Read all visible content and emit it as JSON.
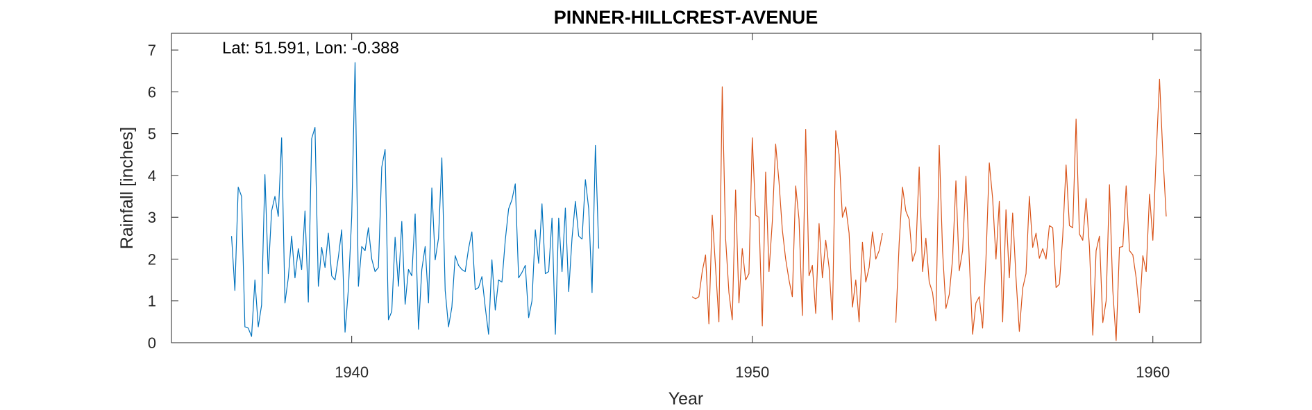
{
  "chart_data": {
    "type": "line",
    "title": "PINNER-HILLCREST-AVENUE",
    "xlabel": "Year",
    "ylabel": "Rainfall [inches]",
    "annotation": "Lat: 51.591, Lon: -0.388",
    "xlim": [
      1935.5,
      1961.2
    ],
    "ylim": [
      0,
      7.4
    ],
    "x_ticks": [
      1940,
      1950,
      1960
    ],
    "y_ticks": [
      0,
      1,
      2,
      3,
      4,
      5,
      6,
      7
    ],
    "grid": false,
    "box": true,
    "series": [
      {
        "color": "#0072BD",
        "x_start": 1937.0,
        "x_step": 0.0833333,
        "values": [
          2.55,
          1.25,
          3.72,
          3.5,
          0.38,
          0.35,
          0.15,
          1.5,
          0.38,
          0.9,
          4.02,
          1.65,
          3.15,
          3.5,
          3.02,
          4.9,
          0.95,
          1.55,
          2.55,
          1.55,
          2.25,
          1.75,
          3.15,
          0.97,
          4.88,
          5.15,
          1.35,
          2.28,
          1.8,
          2.62,
          1.6,
          1.5,
          2.05,
          2.7,
          0.25,
          1.28,
          3.02,
          6.7,
          1.35,
          2.3,
          2.2,
          2.75,
          2.0,
          1.7,
          1.8,
          4.2,
          4.62,
          0.55,
          0.75,
          2.52,
          1.35,
          2.9,
          0.92,
          1.75,
          1.6,
          3.08,
          0.32,
          1.75,
          2.3,
          0.95,
          3.7,
          1.98,
          2.5,
          4.42,
          1.25,
          0.38,
          0.85,
          2.08,
          1.85,
          1.75,
          1.7,
          2.25,
          2.65,
          1.27,
          1.32,
          1.58,
          0.85,
          0.2,
          1.98,
          0.78,
          1.5,
          1.45,
          2.45,
          3.2,
          3.42,
          3.8,
          1.55,
          1.68,
          1.85,
          0.6,
          1.0,
          2.7,
          1.9,
          3.32,
          1.65,
          1.7,
          2.98,
          0.2,
          2.98,
          1.7,
          3.22,
          1.22,
          2.5,
          3.38,
          2.55,
          2.48,
          3.9,
          3.2,
          1.2,
          4.72,
          2.25
        ]
      },
      {
        "color": "#D95319",
        "x_start": 1948.5,
        "x_step": 0.0833333,
        "values": [
          1.1,
          1.05,
          1.1,
          1.7,
          2.1,
          0.45,
          3.05,
          1.8,
          0.5,
          6.12,
          2.5,
          1.2,
          0.55,
          3.65,
          0.95,
          2.25,
          1.5,
          1.65,
          4.9,
          3.05,
          3.0,
          0.4,
          4.08,
          1.7,
          2.9,
          4.75,
          3.85,
          2.7,
          2.0,
          1.5,
          1.1,
          3.75,
          2.95,
          0.65,
          5.1,
          1.6,
          1.85,
          0.7,
          2.85,
          1.55,
          2.45,
          1.8,
          0.55,
          5.07,
          4.5,
          3.0,
          3.25,
          2.62,
          0.85,
          1.5,
          0.5,
          2.4,
          1.45,
          1.8,
          2.65,
          2.0,
          2.2,
          2.62,
          null,
          null,
          null,
          0.48,
          2.38,
          3.72,
          3.15,
          2.95,
          1.95,
          2.2,
          4.2,
          1.7,
          2.5,
          1.45,
          1.2,
          0.52,
          4.72,
          2.2,
          0.82,
          1.15,
          2.0,
          3.87,
          1.72,
          2.2,
          3.98,
          2.0,
          0.2,
          0.95,
          1.1,
          0.35,
          2.0,
          4.3,
          3.45,
          2.0,
          3.38,
          0.5,
          3.18,
          1.55,
          3.1,
          1.55,
          0.27,
          1.3,
          1.65,
          3.5,
          2.28,
          2.62,
          2.02,
          2.25,
          2.0,
          2.8,
          2.75,
          1.32,
          1.4,
          2.55,
          4.25,
          2.8,
          2.75,
          5.35,
          2.6,
          2.45,
          3.45,
          2.3,
          0.18,
          2.2,
          2.55,
          0.48,
          1.0,
          3.78,
          1.25,
          0.05,
          2.28,
          2.3,
          3.75,
          2.2,
          2.1,
          1.55,
          0.72,
          2.08,
          1.7,
          3.55,
          2.45,
          4.5,
          6.3,
          4.5,
          3.02
        ]
      }
    ]
  }
}
